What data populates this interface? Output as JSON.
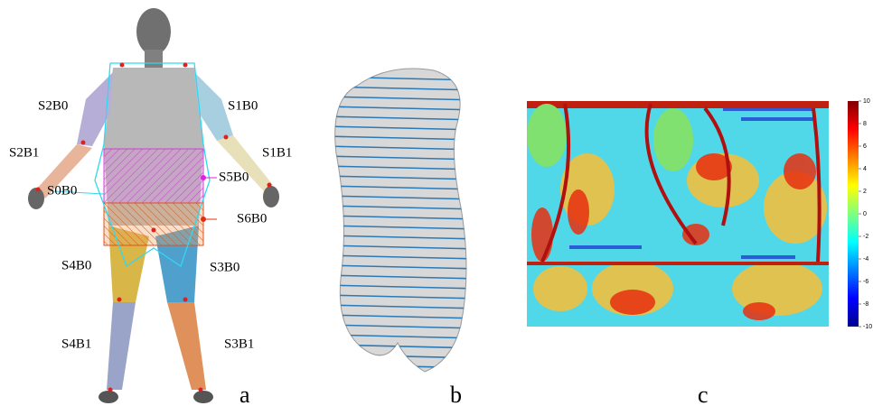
{
  "panel_a": {
    "label": "a",
    "segments": [
      "S2B0",
      "S1B0",
      "S2B1",
      "S1B1",
      "S0B0",
      "S5B0",
      "S6B0",
      "S4B0",
      "S3B0",
      "S4B1",
      "S3B1"
    ]
  },
  "panel_b": {
    "label": "b"
  },
  "panel_c": {
    "label": "c",
    "colorbar_ticks": [
      10,
      8,
      6,
      4,
      2,
      0,
      -2,
      -4,
      -6,
      -8,
      -10
    ]
  }
}
